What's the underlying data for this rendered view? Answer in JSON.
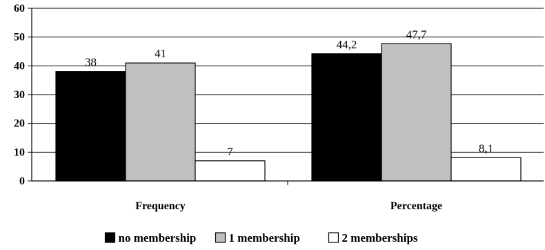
{
  "chart_data": {
    "type": "bar",
    "categories": [
      "Frequency",
      "Percentage"
    ],
    "series": [
      {
        "name": "no membership",
        "values": [
          38,
          44.2
        ],
        "labels": [
          "38",
          "44,2"
        ],
        "color": "#000000"
      },
      {
        "name": "1 membership",
        "values": [
          41,
          47.7
        ],
        "labels": [
          "41",
          "47,7"
        ],
        "color": "#c0c0c0"
      },
      {
        "name": "2 memberships",
        "values": [
          7,
          8.1
        ],
        "labels": [
          "7",
          "8,1"
        ],
        "color": "#ffffff"
      }
    ],
    "yticks": [
      "0",
      "10",
      "20",
      "30",
      "40",
      "50",
      "60"
    ],
    "ylim": [
      0,
      60
    ],
    "grid": true,
    "legend_position": "bottom"
  }
}
